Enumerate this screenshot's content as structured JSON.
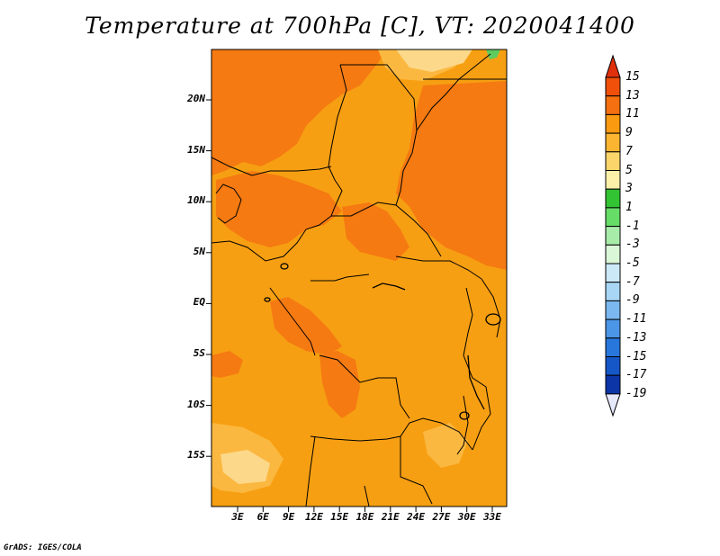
{
  "title": "Temperature at 700hPa [C], VT: 2020041400",
  "credit": "GrADS: IGES/COLA",
  "lat_labels": [
    "20N",
    "15N",
    "10N",
    "5N",
    "EQ",
    "5S",
    "10S",
    "15S"
  ],
  "lon_labels": [
    "3E",
    "6E",
    "9E",
    "12E",
    "15E",
    "18E",
    "21E",
    "24E",
    "27E",
    "30E",
    "33E"
  ],
  "colorbar": {
    "levels": [
      "15",
      "13",
      "11",
      "9",
      "7",
      "5",
      "3",
      "1",
      "-1",
      "-3",
      "-5",
      "-7",
      "-9",
      "-11",
      "-13",
      "-15",
      "-17",
      "-19"
    ],
    "colors": [
      "#e0300c",
      "#f0500a",
      "#f57010",
      "#f99a10",
      "#fbb530",
      "#fcd56a",
      "#fdf0a8",
      "#33c433",
      "#66dd66",
      "#a8ecaa",
      "#daf7d8",
      "#cce9f8",
      "#a8d6f4",
      "#7ab8ef",
      "#4c96e7",
      "#2877dd",
      "#1657c8",
      "#0c35a8",
      "#0a1c78"
    ]
  },
  "map_colors": {
    "base": "#f79f12",
    "warm": "#f57a12",
    "cool": "#fbb840",
    "coolest": "#fcd88a",
    "green": "#5ecb5e"
  }
}
